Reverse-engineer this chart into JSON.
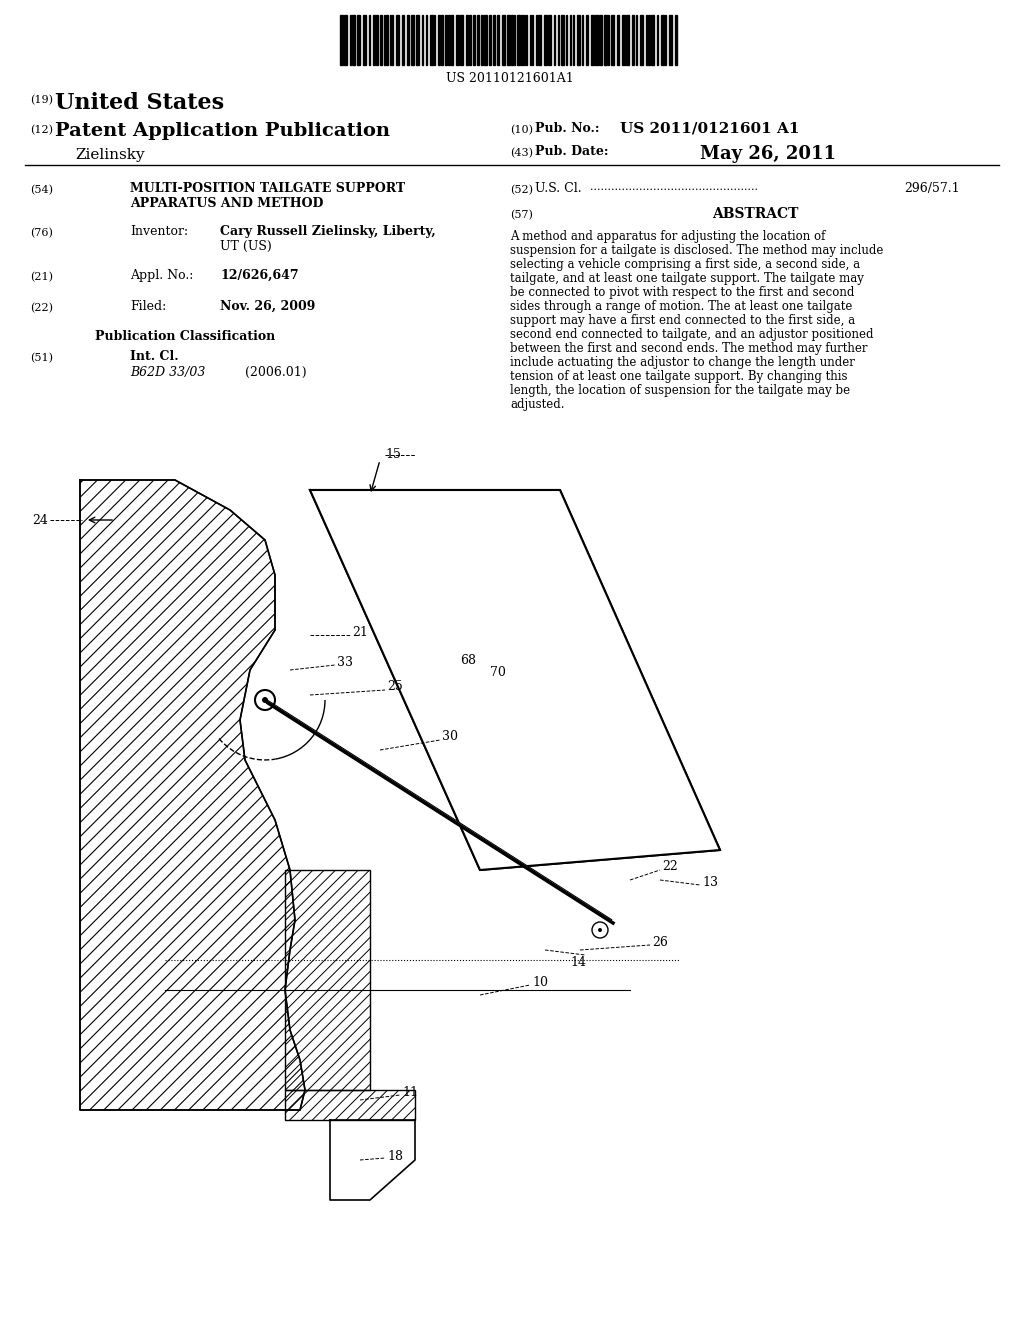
{
  "background_color": "#ffffff",
  "barcode_text": "US 20110121601A1",
  "country": "United States",
  "label_19": "(19)",
  "label_12": "(12)",
  "pub_title": "Patent Application Publication",
  "inventor_surname": "Zielinsky",
  "label_10": "(10)",
  "pub_no_label": "Pub. No.:",
  "pub_no": "US 2011/0121601 A1",
  "label_43": "(43)",
  "pub_date_label": "Pub. Date:",
  "pub_date": "May 26, 2011",
  "label_54": "(54)",
  "invention_title_1": "MULTI-POSITION TAILGATE SUPPORT",
  "invention_title_2": "APPARATUS AND METHOD",
  "label_52": "(52)",
  "us_cl_label": "U.S. Cl.",
  "us_cl_dots": "....................................................",
  "us_cl_value": "296/57.1",
  "label_57": "(57)",
  "abstract_title": "ABSTRACT",
  "abstract_text": "A method and apparatus for adjusting the location of suspension for a tailgate is disclosed. The method may include selecting a vehicle comprising a first side, a second side, a tailgate, and at least one tailgate support. The tailgate may be connected to pivot with respect to the first and second sides through a range of motion. The at least one tailgate support may have a first end connected to the first side, a second end connected to tailgate, and an adjustor positioned between the first and second ends. The method may further include actuating the adjustor to change the length under tension of at least one tailgate support. By changing this length, the location of suspension for the tailgate may be adjusted.",
  "label_76": "(76)",
  "inventor_label": "Inventor:",
  "inventor_name": "Cary Russell Zielinsky, Liberty,",
  "inventor_location": "UT (US)",
  "label_21": "(21)",
  "appl_no_label": "Appl. No.:",
  "appl_no": "12/626,647",
  "label_22": "(22)",
  "filed_label": "Filed:",
  "filed_date": "Nov. 26, 2009",
  "pub_class_title": "Publication Classification",
  "label_51": "(51)",
  "int_cl_label": "Int. Cl.",
  "int_cl_code": "B62D 33/03",
  "int_cl_year": "(2006.01)"
}
